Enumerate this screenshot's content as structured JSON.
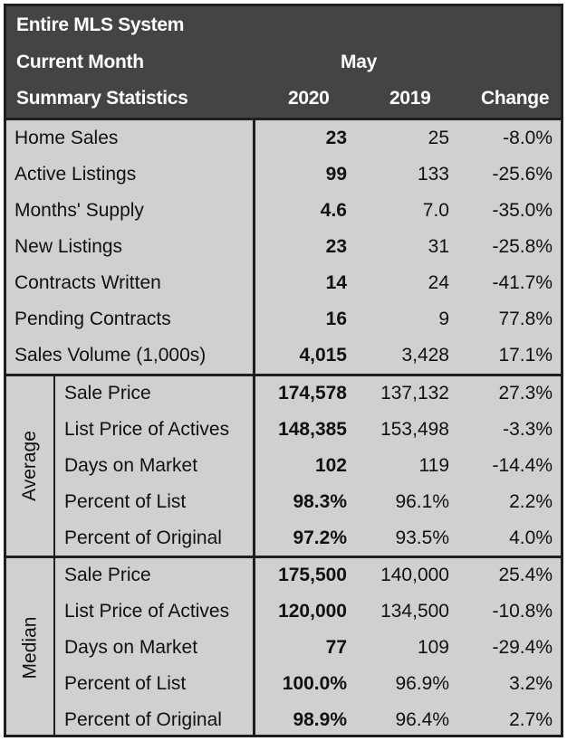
{
  "header": {
    "title": "Entire MLS System",
    "current_month_label": "Current Month",
    "month": "May",
    "summary_label": "Summary Statistics",
    "col_2020": "2020",
    "col_2019": "2019",
    "col_change": "Change"
  },
  "summary_rows": [
    {
      "label": "Home Sales",
      "v2020": "23",
      "v2019": "25",
      "change": "-8.0%"
    },
    {
      "label": "Active Listings",
      "v2020": "99",
      "v2019": "133",
      "change": "-25.6%"
    },
    {
      "label": "Months' Supply",
      "v2020": "4.6",
      "v2019": "7.0",
      "change": "-35.0%"
    },
    {
      "label": "New Listings",
      "v2020": "23",
      "v2019": "31",
      "change": "-25.8%"
    },
    {
      "label": "Contracts Written",
      "v2020": "14",
      "v2019": "24",
      "change": "-41.7%"
    },
    {
      "label": "Pending Contracts",
      "v2020": "16",
      "v2019": "9",
      "change": "77.8%"
    },
    {
      "label": "Sales Volume (1,000s)",
      "v2020": "4,015",
      "v2019": "3,428",
      "change": "17.1%"
    }
  ],
  "average": {
    "label": "Average",
    "rows": [
      {
        "label": "Sale Price",
        "v2020": "174,578",
        "v2019": "137,132",
        "change": "27.3%"
      },
      {
        "label": "List Price of Actives",
        "v2020": "148,385",
        "v2019": "153,498",
        "change": "-3.3%"
      },
      {
        "label": "Days on Market",
        "v2020": "102",
        "v2019": "119",
        "change": "-14.4%"
      },
      {
        "label": "Percent of List",
        "v2020": "98.3%",
        "v2019": "96.1%",
        "change": "2.2%"
      },
      {
        "label": "Percent of Original",
        "v2020": "97.2%",
        "v2019": "93.5%",
        "change": "4.0%"
      }
    ]
  },
  "median": {
    "label": "Median",
    "rows": [
      {
        "label": "Sale Price",
        "v2020": "175,500",
        "v2019": "140,000",
        "change": "25.4%"
      },
      {
        "label": "List Price of Actives",
        "v2020": "120,000",
        "v2019": "134,500",
        "change": "-10.8%"
      },
      {
        "label": "Days on Market",
        "v2020": "77",
        "v2019": "109",
        "change": "-29.4%"
      },
      {
        "label": "Percent of List",
        "v2020": "100.0%",
        "v2019": "96.9%",
        "change": "3.2%"
      },
      {
        "label": "Percent of Original",
        "v2020": "98.9%",
        "v2019": "96.4%",
        "change": "2.7%"
      }
    ]
  }
}
